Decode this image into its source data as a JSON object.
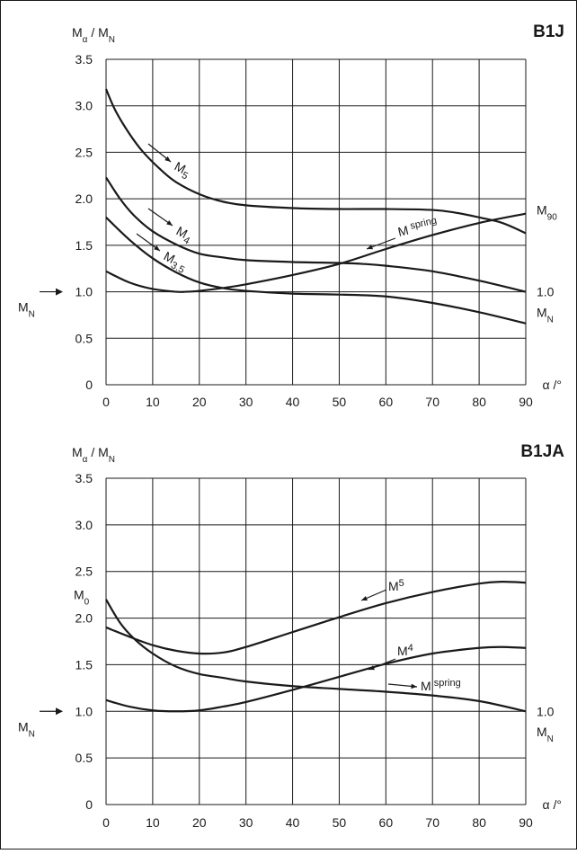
{
  "chart_data": [
    {
      "type": "line",
      "title": "B1J",
      "ylabel": "M",
      "ylabel_sub": "α",
      "ylabel_rest": " / M",
      "ylabel_sub2": "N",
      "xlabel": "α /°",
      "xlim": [
        0,
        90
      ],
      "ylim": [
        0,
        3.5
      ],
      "xticks": [
        "0",
        "10",
        "20",
        "30",
        "40",
        "50",
        "60",
        "70",
        "80",
        "90"
      ],
      "yticks": [
        "0",
        "0.5",
        "1.0",
        "1.5",
        "2.0",
        "2.5",
        "3.0",
        "3.5"
      ],
      "grid": true,
      "right_labels": [
        {
          "main": "M",
          "sub": "90",
          "y": 1.88
        },
        {
          "main": "1.0",
          "sub": "",
          "y": 1.0
        },
        {
          "main": "M",
          "sub": "N",
          "y": 0.78
        }
      ],
      "left_marker": {
        "main": "M",
        "sub": "N",
        "y": 1.0
      },
      "series": [
        {
          "name": "M5",
          "label_main": "M",
          "label_sub": "5",
          "x": [
            0,
            2,
            5,
            8,
            12,
            15,
            20,
            25,
            30,
            40,
            50,
            60,
            70,
            75,
            80,
            85,
            90
          ],
          "y": [
            3.18,
            2.95,
            2.7,
            2.5,
            2.3,
            2.18,
            2.05,
            1.97,
            1.93,
            1.9,
            1.89,
            1.89,
            1.88,
            1.85,
            1.8,
            1.74,
            1.63
          ]
        },
        {
          "name": "M4",
          "label_main": "M",
          "label_sub": "4",
          "x": [
            0,
            3,
            6,
            10,
            15,
            20,
            25,
            30,
            40,
            50,
            55,
            60,
            70,
            80,
            90
          ],
          "y": [
            2.23,
            2.0,
            1.82,
            1.65,
            1.51,
            1.41,
            1.37,
            1.34,
            1.32,
            1.31,
            1.3,
            1.28,
            1.22,
            1.12,
            1.0
          ]
        },
        {
          "name": "M3.5",
          "label_main": "M",
          "label_sub": "3.5",
          "x": [
            0,
            5,
            10,
            15,
            20,
            25,
            30,
            40,
            50,
            60,
            70,
            80,
            90
          ],
          "y": [
            1.8,
            1.56,
            1.36,
            1.21,
            1.1,
            1.04,
            1.01,
            0.98,
            0.97,
            0.95,
            0.88,
            0.78,
            0.66
          ]
        },
        {
          "name": "M spring",
          "label_main": "M",
          "label_sub": "spring",
          "x": [
            0,
            5,
            10,
            15,
            17,
            20,
            25,
            30,
            40,
            50,
            60,
            70,
            80,
            90
          ],
          "y": [
            1.22,
            1.1,
            1.03,
            1.0,
            1.0,
            1.01,
            1.04,
            1.08,
            1.18,
            1.3,
            1.46,
            1.61,
            1.74,
            1.84
          ]
        }
      ]
    },
    {
      "type": "line",
      "title": "B1JA",
      "ylabel": "M",
      "ylabel_sub": "α",
      "ylabel_rest": " / M",
      "ylabel_sub2": "N",
      "xlabel": "α /°",
      "xlim": [
        0,
        90
      ],
      "ylim": [
        0,
        3.5
      ],
      "xticks": [
        "0",
        "10",
        "20",
        "30",
        "40",
        "50",
        "60",
        "70",
        "80",
        "90"
      ],
      "yticks": [
        "0",
        "0.5",
        "1.0",
        "1.5",
        "2.0",
        "2.5",
        "3.0",
        "3.5"
      ],
      "grid": true,
      "right_labels": [
        {
          "main": "1.0",
          "sub": "",
          "y": 1.0
        },
        {
          "main": "M",
          "sub": "N",
          "y": 0.78
        }
      ],
      "left_labels": [
        {
          "main": "M",
          "sub": "0",
          "y": 2.25
        }
      ],
      "left_marker": {
        "main": "M",
        "sub": "N",
        "y": 1.0
      },
      "series": [
        {
          "name": "M5",
          "label_main": "M",
          "label_sub": "5",
          "x": [
            0,
            5,
            10,
            15,
            20,
            25,
            30,
            40,
            50,
            60,
            70,
            80,
            85,
            90
          ],
          "y": [
            1.9,
            1.8,
            1.71,
            1.65,
            1.62,
            1.63,
            1.69,
            1.85,
            2.01,
            2.16,
            2.28,
            2.37,
            2.39,
            2.38
          ]
        },
        {
          "name": "M4",
          "label_main": "M",
          "label_sub": "4",
          "x": [
            0,
            5,
            10,
            15,
            20,
            25,
            30,
            40,
            50,
            60,
            70,
            80,
            85,
            90
          ],
          "y": [
            1.12,
            1.05,
            1.01,
            1.0,
            1.01,
            1.05,
            1.1,
            1.23,
            1.37,
            1.51,
            1.62,
            1.68,
            1.69,
            1.68
          ]
        },
        {
          "name": "M spring",
          "label_main": "M",
          "label_sub": "spring",
          "x": [
            0,
            3,
            6,
            10,
            15,
            20,
            25,
            30,
            40,
            50,
            60,
            70,
            80,
            90
          ],
          "y": [
            2.2,
            1.95,
            1.78,
            1.62,
            1.48,
            1.4,
            1.36,
            1.32,
            1.27,
            1.24,
            1.21,
            1.17,
            1.11,
            1.0
          ]
        }
      ]
    }
  ]
}
